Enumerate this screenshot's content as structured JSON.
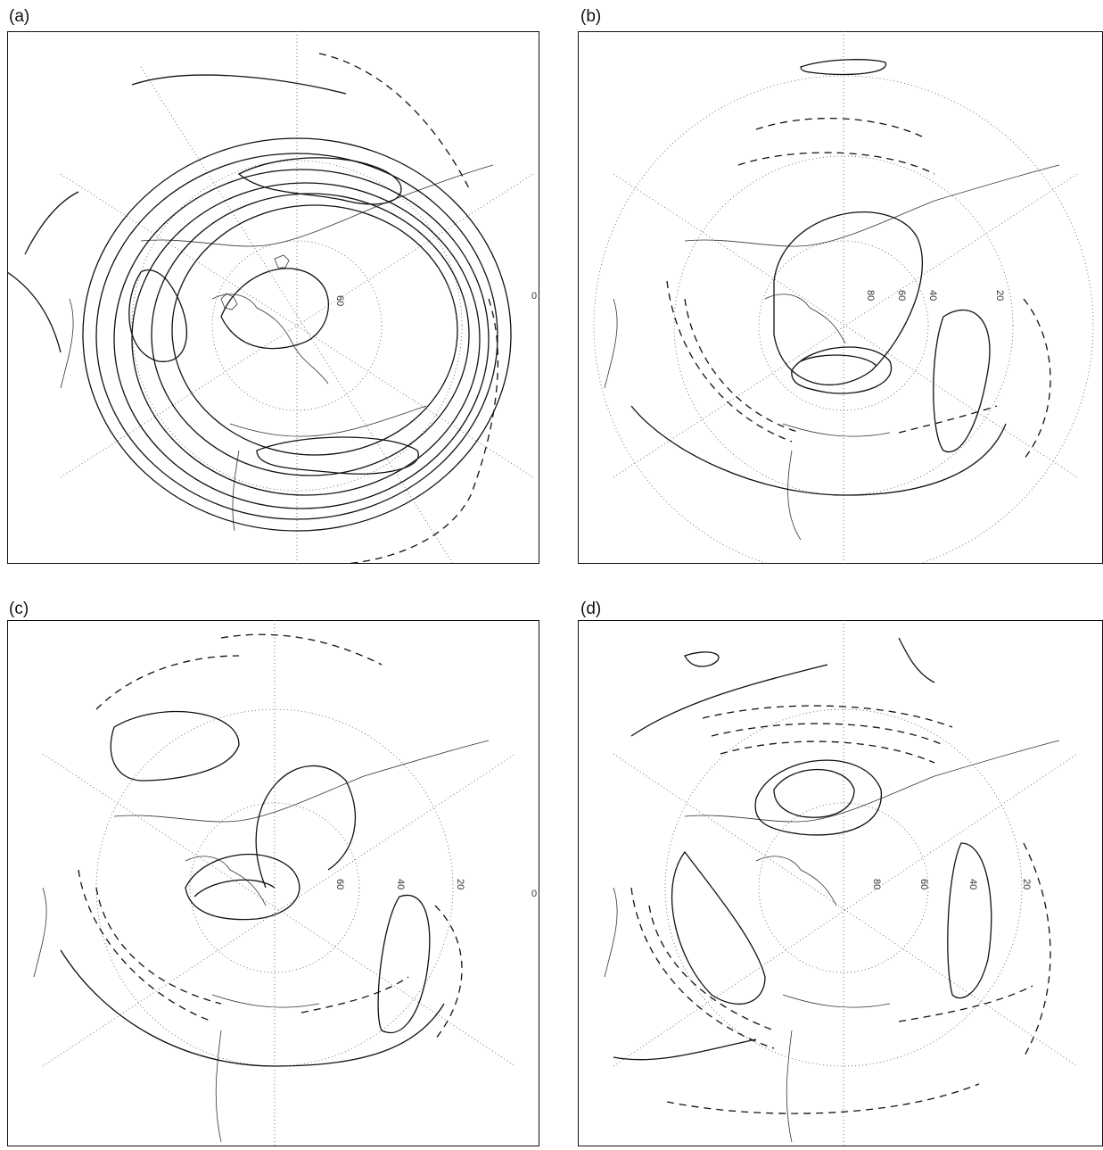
{
  "figure": {
    "panels": [
      {
        "id": "a",
        "label": "(a)",
        "lat_labels": [
          "60",
          "0"
        ]
      },
      {
        "id": "b",
        "label": "(b)",
        "lat_labels": [
          "80",
          "60",
          "40",
          "20"
        ]
      },
      {
        "id": "c",
        "label": "(c)",
        "lat_labels": [
          "60",
          "40",
          "20",
          "0"
        ]
      },
      {
        "id": "d",
        "label": "(d)",
        "lat_labels": [
          "80",
          "60",
          "40",
          "20"
        ]
      }
    ],
    "projection": "north polar stereographic",
    "contour_styles": {
      "positive": "solid",
      "negative": "dashed"
    },
    "colors": {
      "ink": "#111111",
      "grid": "#555555",
      "coast": "#333333"
    }
  }
}
